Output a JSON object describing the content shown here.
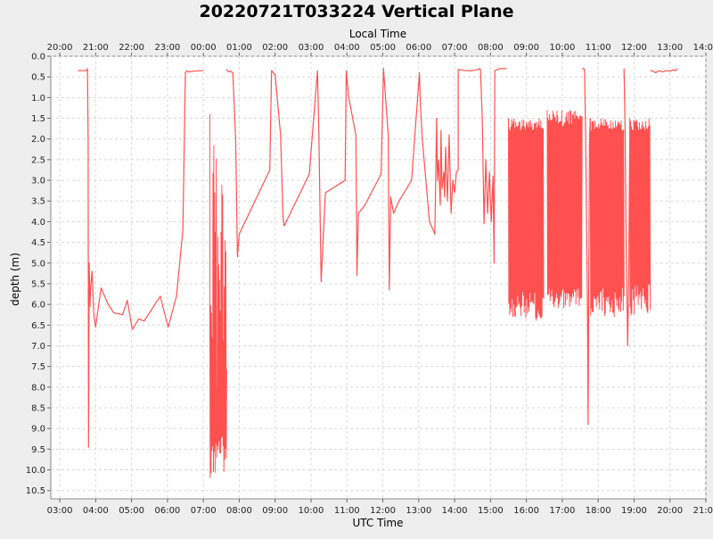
{
  "chart_data": {
    "type": "line",
    "title": "20220721T033224 Vertical Plane",
    "xlabel": "UTC Time",
    "x2label": "Local Time",
    "ylabel": "depth (m)",
    "y_inverted": true,
    "ylim": [
      0.0,
      10.7
    ],
    "xlim_utc_hours": [
      2.75,
      21.0
    ],
    "utc_ticks": [
      "03:00",
      "04:00",
      "05:00",
      "06:00",
      "07:00",
      "08:00",
      "09:00",
      "10:00",
      "11:00",
      "12:00",
      "13:00",
      "14:00",
      "15:00",
      "16:00",
      "17:00",
      "18:00",
      "19:00",
      "20:00",
      "21:00"
    ],
    "local_ticks": [
      "20:00",
      "21:00",
      "22:00",
      "23:00",
      "00:00",
      "01:00",
      "02:00",
      "03:00",
      "04:00",
      "05:00",
      "06:00",
      "07:00",
      "08:00",
      "09:00",
      "10:00",
      "11:00",
      "12:00",
      "13:00",
      "14:00"
    ],
    "y_ticks": [
      "0.0",
      "0.5",
      "1.0",
      "1.5",
      "2.0",
      "2.5",
      "3.0",
      "3.5",
      "4.0",
      "4.5",
      "5.0",
      "5.5",
      "6.0",
      "6.5",
      "7.0",
      "7.5",
      "8.0",
      "8.5",
      "9.0",
      "9.5",
      "10.0",
      "10.5"
    ],
    "grid": true,
    "line_color": "#ff5050",
    "series": [
      {
        "name": "",
        "x_utc_hours": [
          3.5,
          3.75,
          3.77,
          3.79,
          3.8,
          3.82,
          3.84,
          3.86,
          3.9,
          3.95,
          4.0,
          4.15,
          4.35,
          4.5,
          4.75,
          4.88,
          5.02,
          5.2,
          5.35,
          5.5,
          5.8,
          6.02,
          6.25,
          6.43,
          6.5,
          6.54,
          6.58,
          6.75,
          6.98,
          7.0
        ],
        "y": [
          0.35,
          0.35,
          0.3,
          2.0,
          9.45,
          5.0,
          6.05,
          5.6,
          5.2,
          6.25,
          6.55,
          5.6,
          6.0,
          6.2,
          6.25,
          5.9,
          6.6,
          6.35,
          6.4,
          6.2,
          5.8,
          6.55,
          5.8,
          4.2,
          0.4,
          0.35,
          0.38,
          0.36,
          0.35,
          0.35
        ],
        "bursts": [
          {
            "x": [
              7.18,
              7.65
            ],
            "ymin": [
              1.4,
              8.2
            ],
            "ymax": [
              9.2,
              10.2
            ]
          },
          {
            "x": [
              15.5,
              16.48
            ],
            "ymin": [
              1.5,
              1.8
            ],
            "ymax": [
              5.7,
              6.4
            ]
          },
          {
            "x": [
              16.58,
              17.55
            ],
            "ymin": [
              1.3,
              1.7
            ],
            "ymax": [
              5.6,
              6.1
            ]
          },
          {
            "x": [
              17.78,
              18.72
            ],
            "ymin": [
              1.5,
              1.8
            ],
            "ymax": [
              5.6,
              6.3
            ]
          },
          {
            "x": [
              18.88,
              19.45
            ],
            "ymin": [
              1.5,
              1.8
            ],
            "ymax": [
              5.5,
              6.3
            ]
          }
        ],
        "x2_utc_hours": [
          7.65,
          7.7,
          7.75,
          7.82,
          7.9,
          7.95,
          8.0,
          8.85,
          8.9,
          9.0,
          9.15,
          9.22,
          9.25,
          9.95,
          10.18,
          10.22,
          10.28,
          10.4,
          10.95,
          10.98,
          11.05,
          11.25,
          11.28,
          11.32,
          11.5,
          11.95,
          12.02,
          12.15,
          12.18,
          12.22,
          12.3,
          12.45,
          12.8,
          13.02,
          13.04,
          13.1,
          13.3,
          13.45,
          13.5,
          13.52,
          13.55,
          13.6,
          13.62,
          13.65,
          13.7,
          13.72,
          13.75,
          13.8,
          13.85,
          13.9,
          13.95,
          14.0,
          14.05,
          14.1,
          14.1,
          14.3,
          14.5,
          14.6,
          14.7,
          14.72,
          14.77,
          14.82,
          14.87,
          14.92,
          14.97,
          15.02,
          15.07,
          15.1,
          15.12,
          15.25,
          15.45
        ],
        "y2": [
          0.32,
          0.38,
          0.36,
          0.4,
          2.0,
          4.85,
          4.3,
          2.75,
          0.35,
          0.45,
          1.9,
          3.9,
          4.1,
          2.85,
          0.35,
          1.9,
          5.45,
          3.3,
          3.0,
          0.35,
          1.0,
          1.9,
          5.3,
          3.8,
          3.6,
          2.85,
          0.3,
          1.9,
          5.65,
          3.4,
          3.8,
          3.5,
          3.0,
          0.4,
          1.0,
          2.0,
          4.0,
          4.3,
          1.5,
          3.0,
          2.5,
          3.6,
          1.8,
          3.2,
          2.8,
          3.4,
          2.2,
          3.5,
          1.9,
          3.8,
          3.0,
          3.3,
          2.8,
          2.75,
          0.32,
          0.35,
          0.35,
          0.33,
          0.3,
          0.32,
          1.5,
          4.05,
          2.5,
          3.8,
          2.8,
          4.0,
          2.9,
          5.0,
          0.35,
          0.3,
          0.3
        ],
        "x3_utc_hours": [
          17.55,
          17.6,
          17.62,
          17.65,
          17.7,
          17.72,
          17.74,
          17.76,
          17.78
        ],
        "y3": [
          0.3,
          0.3,
          0.35,
          1.9,
          6.0,
          8.9,
          5.0,
          2.0,
          1.5
        ],
        "x4_utc_hours": [
          18.72,
          18.75,
          18.78,
          18.82,
          18.85,
          18.88
        ],
        "y4": [
          0.3,
          1.8,
          4.5,
          7.0,
          5.5,
          2.0
        ],
        "x5_utc_hours": [
          19.45,
          19.5,
          19.6,
          19.7,
          19.8,
          19.9,
          20.0,
          20.1,
          20.15,
          20.2
        ],
        "y5": [
          0.35,
          0.35,
          0.4,
          0.35,
          0.38,
          0.35,
          0.36,
          0.33,
          0.35,
          0.3
        ]
      }
    ]
  }
}
